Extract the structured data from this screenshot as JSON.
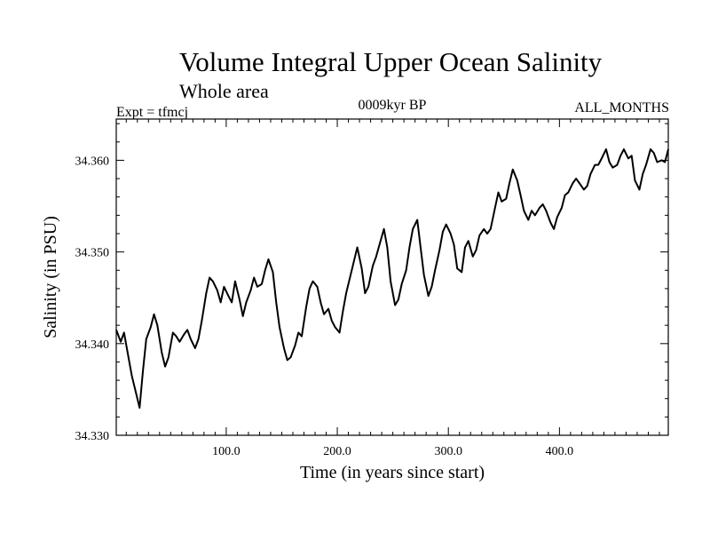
{
  "chart_data": {
    "type": "line",
    "title": "Volume Integral Upper Ocean Salinity",
    "subtitle": "Whole area",
    "left_label": "Expt = tfmcj",
    "center_label": "0009kyr BP",
    "right_label": "ALL_MONTHS",
    "xlabel": "Time (in years since start)",
    "ylabel": "Salinity (in PSU)",
    "xlim": [
      1,
      498
    ],
    "ylim": [
      34.33,
      34.3645
    ],
    "x_ticks": [
      100,
      200,
      300,
      400
    ],
    "x_tick_labels": [
      "100.0",
      "200.0",
      "300.0",
      "400.0"
    ],
    "y_ticks": [
      34.33,
      34.34,
      34.35,
      34.36
    ],
    "y_tick_labels": [
      "34.330",
      "34.340",
      "34.350",
      "34.360"
    ],
    "grid": false,
    "series": [
      {
        "name": "salinity",
        "x": [
          1,
          5,
          8,
          12,
          15,
          18,
          22,
          25,
          28,
          32,
          35,
          38,
          42,
          45,
          48,
          52,
          55,
          58,
          62,
          65,
          68,
          72,
          75,
          78,
          82,
          85,
          88,
          92,
          95,
          98,
          102,
          105,
          108,
          112,
          115,
          118,
          122,
          125,
          128,
          132,
          135,
          138,
          142,
          145,
          148,
          152,
          155,
          158,
          162,
          165,
          168,
          172,
          175,
          178,
          182,
          185,
          188,
          192,
          195,
          198,
          202,
          205,
          208,
          212,
          215,
          218,
          222,
          225,
          228,
          232,
          235,
          238,
          242,
          245,
          248,
          252,
          255,
          258,
          262,
          265,
          268,
          272,
          275,
          278,
          282,
          285,
          288,
          292,
          295,
          298,
          302,
          305,
          308,
          312,
          315,
          318,
          322,
          325,
          328,
          332,
          335,
          338,
          342,
          345,
          348,
          352,
          355,
          358,
          362,
          365,
          368,
          372,
          375,
          378,
          382,
          385,
          388,
          392,
          395,
          398,
          402,
          405,
          408,
          412,
          415,
          418,
          422,
          425,
          428,
          432,
          435,
          438,
          442,
          445,
          448,
          452,
          455,
          458,
          462,
          465,
          468,
          472,
          475,
          478,
          482,
          485,
          488,
          492,
          495,
          498
        ],
        "values": [
          34.3415,
          34.3402,
          34.3412,
          34.3385,
          34.3365,
          34.335,
          34.333,
          34.337,
          34.3405,
          34.3418,
          34.3432,
          34.342,
          34.339,
          34.3375,
          34.3385,
          34.3412,
          34.3408,
          34.3402,
          34.341,
          34.3415,
          34.3405,
          34.3395,
          34.3405,
          34.3425,
          34.3455,
          34.3472,
          34.3468,
          34.3458,
          34.3445,
          34.3462,
          34.3452,
          34.3445,
          34.3468,
          34.3448,
          34.343,
          34.3445,
          34.3458,
          34.3472,
          34.3462,
          34.3465,
          34.348,
          34.3492,
          34.3478,
          34.3445,
          34.3418,
          34.3395,
          34.3382,
          34.3385,
          34.3398,
          34.3412,
          34.3408,
          34.344,
          34.346,
          34.3468,
          34.3462,
          34.3445,
          34.3432,
          34.3438,
          34.3425,
          34.3418,
          34.3412,
          34.3435,
          34.3455,
          34.3475,
          34.349,
          34.3505,
          34.3482,
          34.3455,
          34.3462,
          34.3485,
          34.3495,
          34.3508,
          34.3525,
          34.3505,
          34.3468,
          34.3442,
          34.3448,
          34.3465,
          34.348,
          34.3505,
          34.3525,
          34.3535,
          34.3505,
          34.3475,
          34.3452,
          34.3462,
          34.348,
          34.3502,
          34.3522,
          34.353,
          34.352,
          34.3508,
          34.3482,
          34.3478,
          34.3505,
          34.3512,
          34.3495,
          34.3502,
          34.3518,
          34.3525,
          34.352,
          34.3525,
          34.3548,
          34.3565,
          34.3555,
          34.3558,
          34.3575,
          34.359,
          34.3578,
          34.3562,
          34.3545,
          34.3535,
          34.3545,
          34.354,
          34.3548,
          34.3552,
          34.3545,
          34.3532,
          34.3525,
          34.3538,
          34.3548,
          34.3562,
          34.3565,
          34.3575,
          34.358,
          34.3575,
          34.3568,
          34.3572,
          34.3585,
          34.3595,
          34.3595,
          34.3602,
          34.3612,
          34.3598,
          34.3592,
          34.3595,
          34.3605,
          34.3612,
          34.3602,
          34.3605,
          34.3578,
          34.3568,
          34.3585,
          34.3595,
          34.3612,
          34.3608,
          34.3598,
          34.36,
          34.3598,
          34.3612
        ]
      }
    ]
  }
}
